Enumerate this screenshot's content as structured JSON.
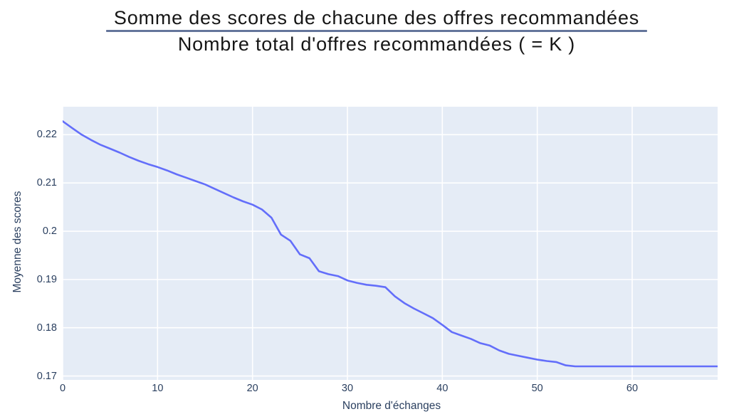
{
  "title": {
    "numerator": "Somme des scores de chacune des offres recommandées",
    "denominator": "Nombre total d'offres recommandées ( = K )"
  },
  "colors": {
    "line": "#636efa",
    "plot_background": "#e5ecf6",
    "gridline": "#ffffff",
    "axis_text": "#2a3f5f",
    "fraction_bar": "#64759b",
    "title_text": "#161616"
  },
  "chart_data": {
    "type": "line",
    "title": "Somme des scores de chacune des offres recommandées / Nombre total d'offres recommandées ( = K )",
    "xlabel": "Nombre d'échanges",
    "ylabel": "Moyenne des scores",
    "xlim": [
      0,
      69
    ],
    "ylim": [
      0.1692,
      0.2258
    ],
    "grid": true,
    "legend": "none",
    "x_ticks": [
      0,
      10,
      20,
      30,
      40,
      50,
      60
    ],
    "x_tick_labels": [
      "0",
      "10",
      "20",
      "30",
      "40",
      "50",
      "60"
    ],
    "y_ticks": [
      0.17,
      0.18,
      0.19,
      0.2,
      0.21,
      0.22
    ],
    "y_tick_labels": [
      "0.17",
      "0.18",
      "0.19",
      "0.2",
      "0.21",
      "0.22"
    ],
    "x": [
      0,
      1,
      2,
      3,
      4,
      5,
      6,
      7,
      8,
      9,
      10,
      11,
      12,
      13,
      14,
      15,
      16,
      17,
      18,
      19,
      20,
      21,
      22,
      23,
      24,
      25,
      26,
      27,
      28,
      29,
      30,
      31,
      32,
      33,
      34,
      35,
      36,
      37,
      38,
      39,
      40,
      41,
      42,
      43,
      44,
      45,
      46,
      47,
      48,
      49,
      50,
      51,
      52,
      53,
      54,
      55,
      56,
      57,
      58,
      59,
      60,
      61,
      62,
      63,
      64,
      65,
      66,
      67,
      68,
      69
    ],
    "y": [
      0.2228,
      0.2214,
      0.22,
      0.2189,
      0.2179,
      0.2171,
      0.2163,
      0.2154,
      0.2146,
      0.2139,
      0.2133,
      0.2126,
      0.2118,
      0.2111,
      0.2104,
      0.2097,
      0.2088,
      0.2079,
      0.207,
      0.2062,
      0.2055,
      0.2045,
      0.2028,
      0.1993,
      0.198,
      0.1952,
      0.1944,
      0.1917,
      0.1911,
      0.1907,
      0.1898,
      0.1893,
      0.1889,
      0.1887,
      0.1884,
      0.1865,
      0.1851,
      0.184,
      0.183,
      0.182,
      0.1806,
      0.1791,
      0.1784,
      0.1777,
      0.1768,
      0.1763,
      0.1753,
      0.1746,
      0.1742,
      0.1738,
      0.1734,
      0.1731,
      0.1729,
      0.1722,
      0.172,
      0.172,
      0.172,
      0.172,
      0.172,
      0.172,
      0.172,
      0.172,
      0.172,
      0.172,
      0.172,
      0.172,
      0.172,
      0.172,
      0.172,
      0.172
    ]
  }
}
